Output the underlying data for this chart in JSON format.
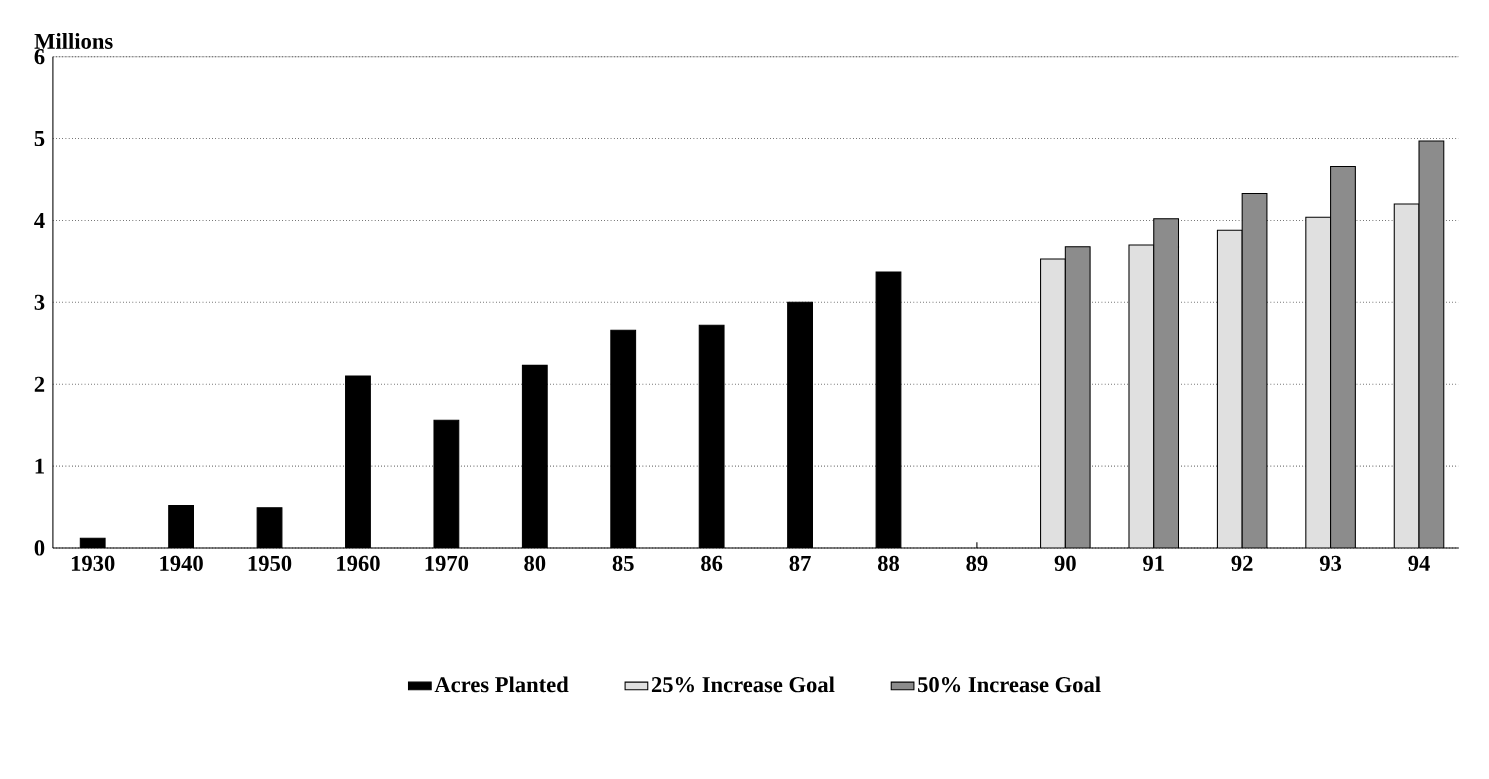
{
  "chart_data": {
    "type": "bar",
    "ylabel": "Millions",
    "categories": [
      "1930",
      "1940",
      "1950",
      "1960",
      "1970",
      "80",
      "85",
      "86",
      "87",
      "88",
      "89",
      "90",
      "91",
      "92",
      "93",
      "94"
    ],
    "series": [
      {
        "name": "Acres Planted",
        "color": "#000000",
        "values": [
          0.12,
          0.52,
          0.49,
          2.1,
          1.56,
          2.23,
          2.66,
          2.72,
          3.0,
          3.37,
          null,
          null,
          null,
          null,
          null,
          null
        ]
      },
      {
        "name": "25% Increase Goal",
        "color": "#e0e0e0",
        "values": [
          null,
          null,
          null,
          null,
          null,
          null,
          null,
          null,
          null,
          null,
          null,
          3.53,
          3.7,
          3.88,
          4.04,
          4.2
        ]
      },
      {
        "name": "50% Increase Goal",
        "color": "#8c8c8c",
        "values": [
          null,
          null,
          null,
          null,
          null,
          null,
          null,
          null,
          null,
          null,
          null,
          3.68,
          4.02,
          4.33,
          4.66,
          4.97
        ]
      }
    ],
    "ylim": [
      0,
      6
    ],
    "yticks": [
      0,
      1,
      2,
      3,
      4,
      5,
      6
    ],
    "grid": "y",
    "legend": "bottom"
  }
}
